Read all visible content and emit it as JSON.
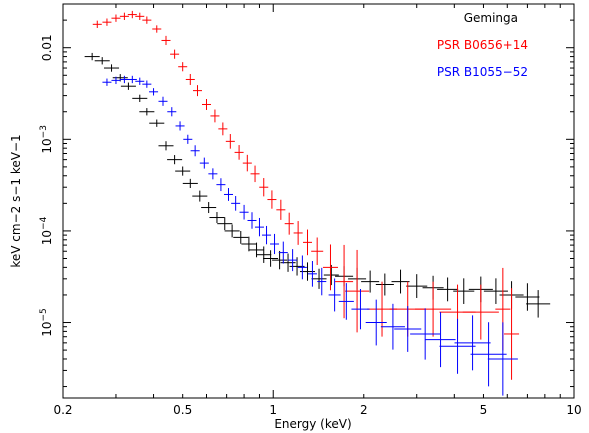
{
  "chart_data": {
    "type": "scatter",
    "title": "",
    "xlabel": "Energy (keV)",
    "ylabel": "keV cm−2 s−1 keV−1",
    "xscale": "log",
    "yscale": "log",
    "xlim": [
      0.2,
      10
    ],
    "ylim": [
      1.5e-06,
      0.03
    ],
    "x_ticks": [
      {
        "value": 0.2,
        "label": "0.2"
      },
      {
        "value": 0.5,
        "label": "0.5"
      },
      {
        "value": 1,
        "label": "1"
      },
      {
        "value": 2,
        "label": "2"
      },
      {
        "value": 5,
        "label": "5"
      },
      {
        "value": 10,
        "label": "10"
      }
    ],
    "y_ticks": [
      {
        "value": 0.01,
        "base": "0.01",
        "exp": ""
      },
      {
        "value": 0.001,
        "base": "10",
        "exp": "−3"
      },
      {
        "value": 0.0001,
        "base": "10",
        "exp": "−4"
      },
      {
        "value": 1e-05,
        "base": "10",
        "exp": "−5"
      }
    ],
    "legend_position": "top-right",
    "series": [
      {
        "name": "Geminga",
        "color": "#000000",
        "x": [
          0.25,
          0.27,
          0.29,
          0.31,
          0.33,
          0.36,
          0.38,
          0.41,
          0.44,
          0.47,
          0.5,
          0.53,
          0.57,
          0.61,
          0.65,
          0.69,
          0.73,
          0.78,
          0.83,
          0.88,
          0.93,
          0.98,
          1.05,
          1.12,
          1.2,
          1.3,
          1.42,
          1.56,
          1.72,
          1.9,
          2.1,
          2.35,
          2.65,
          3.0,
          3.4,
          3.8,
          4.3,
          4.9,
          5.5,
          6.2,
          7.0,
          7.6
        ],
        "y": [
          0.008,
          0.0072,
          0.006,
          0.0047,
          0.0038,
          0.0028,
          0.002,
          0.0015,
          0.00085,
          0.0006,
          0.00045,
          0.00033,
          0.00024,
          0.00018,
          0.00014,
          0.00012,
          0.0001,
          8.5e-05,
          7.2e-05,
          6.2e-05,
          5.5e-05,
          5e-05,
          4.8e-05,
          4.5e-05,
          4.1e-05,
          3.6e-05,
          3e-05,
          3.3e-05,
          3.2e-05,
          3e-05,
          2.8e-05,
          2.6e-05,
          2.8e-05,
          2.5e-05,
          2.4e-05,
          2.3e-05,
          2.2e-05,
          2.3e-05,
          2.2e-05,
          2e-05,
          1.9e-05,
          1.6e-05
        ],
        "xerr": [
          0.05,
          0.05,
          0.05,
          0.05,
          0.05,
          0.05,
          0.05,
          0.05,
          0.05,
          0.05,
          0.05,
          0.05,
          0.05,
          0.05,
          0.05,
          0.05,
          0.05,
          0.05,
          0.05,
          0.05,
          0.05,
          0.05,
          0.05,
          0.05,
          0.05,
          0.05,
          0.05,
          0.05,
          0.06,
          0.06,
          0.06,
          0.06,
          0.06,
          0.07,
          0.07,
          0.07,
          0.07,
          0.08,
          0.08,
          0.08,
          0.08,
          0.08
        ],
        "yerr": [
          0.04,
          0.04,
          0.04,
          0.04,
          0.04,
          0.04,
          0.04,
          0.04,
          0.05,
          0.05,
          0.05,
          0.05,
          0.06,
          0.06,
          0.06,
          0.07,
          0.07,
          0.07,
          0.08,
          0.08,
          0.09,
          0.09,
          0.1,
          0.1,
          0.1,
          0.1,
          0.11,
          0.11,
          0.11,
          0.12,
          0.12,
          0.12,
          0.13,
          0.13,
          0.13,
          0.13,
          0.14,
          0.14,
          0.14,
          0.15,
          0.15,
          0.15
        ]
      },
      {
        "name": "PSR B0656+14",
        "color": "#ff0000",
        "x": [
          0.26,
          0.28,
          0.3,
          0.32,
          0.34,
          0.36,
          0.38,
          0.41,
          0.44,
          0.47,
          0.5,
          0.53,
          0.56,
          0.6,
          0.64,
          0.68,
          0.72,
          0.77,
          0.82,
          0.87,
          0.93,
          0.99,
          1.06,
          1.13,
          1.21,
          1.3,
          1.4,
          1.55,
          1.72,
          1.9,
          2.3,
          2.8,
          3.4,
          4.1,
          4.9,
          5.8,
          6.2
        ],
        "y": [
          0.018,
          0.019,
          0.021,
          0.022,
          0.023,
          0.022,
          0.02,
          0.016,
          0.012,
          0.0085,
          0.0062,
          0.0045,
          0.0034,
          0.0024,
          0.0018,
          0.0013,
          0.00095,
          0.00072,
          0.00055,
          0.00042,
          0.0003,
          0.00022,
          0.00017,
          0.00012,
          9.5e-05,
          7.5e-05,
          6e-05,
          4e-05,
          2.8e-05,
          2.2e-05,
          1.4e-05,
          1.4e-05,
          1.4e-05,
          1.3e-05,
          1.3e-05,
          1.4e-05,
          7.5e-06
        ],
        "xerr": [
          0.03,
          0.03,
          0.03,
          0.03,
          0.03,
          0.03,
          0.03,
          0.03,
          0.03,
          0.03,
          0.03,
          0.03,
          0.03,
          0.03,
          0.03,
          0.03,
          0.03,
          0.03,
          0.03,
          0.03,
          0.03,
          0.03,
          0.03,
          0.03,
          0.03,
          0.03,
          0.04,
          0.05,
          0.06,
          0.08,
          0.1,
          0.12,
          0.12,
          0.12,
          0.12,
          0.05,
          0.05
        ],
        "yerr": [
          0.04,
          0.04,
          0.04,
          0.04,
          0.04,
          0.04,
          0.04,
          0.04,
          0.05,
          0.05,
          0.05,
          0.06,
          0.06,
          0.06,
          0.07,
          0.07,
          0.08,
          0.08,
          0.09,
          0.09,
          0.1,
          0.1,
          0.11,
          0.12,
          0.13,
          0.14,
          0.15,
          0.25,
          0.4,
          0.45,
          0.3,
          0.3,
          0.3,
          0.3,
          0.3,
          0.45,
          0.5
        ]
      },
      {
        "name": "PSR B1055−52",
        "color": "#0000ff",
        "x": [
          0.28,
          0.3,
          0.32,
          0.34,
          0.36,
          0.38,
          0.4,
          0.43,
          0.46,
          0.49,
          0.52,
          0.55,
          0.59,
          0.63,
          0.67,
          0.71,
          0.75,
          0.8,
          0.85,
          0.9,
          0.95,
          1.01,
          1.08,
          1.16,
          1.25,
          1.35,
          1.45,
          1.6,
          1.75,
          1.95,
          2.2,
          2.5,
          2.8,
          3.2,
          3.6,
          4.1,
          4.6,
          5.2,
          5.8
        ],
        "y": [
          0.0042,
          0.0044,
          0.0045,
          0.0045,
          0.0043,
          0.004,
          0.0033,
          0.0026,
          0.002,
          0.0014,
          0.001,
          0.00075,
          0.00055,
          0.00042,
          0.00032,
          0.00025,
          0.0002,
          0.00016,
          0.00013,
          0.00011,
          9e-05,
          7.2e-05,
          5.8e-05,
          4.8e-05,
          4e-05,
          3.4e-05,
          2.8e-05,
          2e-05,
          1.7e-05,
          1.4e-05,
          1e-05,
          9e-06,
          8.5e-06,
          7.5e-06,
          6.5e-06,
          5.5e-06,
          6e-06,
          4.5e-06,
          4e-06
        ],
        "xerr": [
          0.03,
          0.03,
          0.03,
          0.03,
          0.03,
          0.03,
          0.03,
          0.03,
          0.03,
          0.03,
          0.03,
          0.03,
          0.03,
          0.03,
          0.03,
          0.03,
          0.03,
          0.03,
          0.03,
          0.03,
          0.03,
          0.03,
          0.03,
          0.03,
          0.03,
          0.03,
          0.03,
          0.04,
          0.05,
          0.06,
          0.07,
          0.08,
          0.09,
          0.1,
          0.1,
          0.12,
          0.12,
          0.12,
          0.1
        ],
        "yerr": [
          0.04,
          0.04,
          0.04,
          0.04,
          0.04,
          0.04,
          0.04,
          0.05,
          0.05,
          0.05,
          0.05,
          0.06,
          0.06,
          0.06,
          0.07,
          0.07,
          0.08,
          0.08,
          0.09,
          0.1,
          0.1,
          0.11,
          0.12,
          0.12,
          0.13,
          0.14,
          0.15,
          0.18,
          0.2,
          0.22,
          0.25,
          0.25,
          0.25,
          0.28,
          0.3,
          0.3,
          0.3,
          0.35,
          0.4
        ]
      }
    ]
  }
}
